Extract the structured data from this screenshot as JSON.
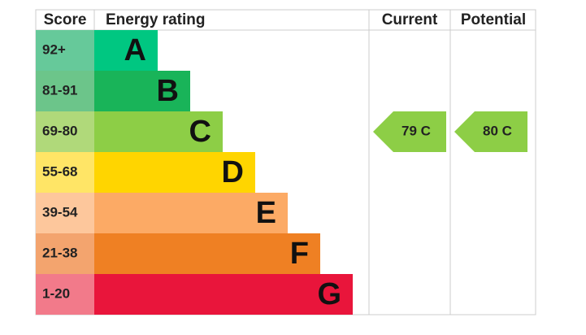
{
  "header": {
    "score": "Score",
    "rating": "Energy rating",
    "current": "Current",
    "potential": "Potential"
  },
  "bands": [
    {
      "score": "92+",
      "letter": "A",
      "score_color": "#66c99a",
      "color": "#00c781"
    },
    {
      "score": "81-91",
      "letter": "B",
      "score_color": "#6cc58a",
      "color": "#19b459"
    },
    {
      "score": "69-80",
      "letter": "C",
      "score_color": "#b0d97a",
      "color": "#8dce46"
    },
    {
      "score": "55-68",
      "letter": "D",
      "score_color": "#ffe566",
      "color": "#ffd500"
    },
    {
      "score": "39-54",
      "letter": "E",
      "score_color": "#fdc79c",
      "color": "#fcaa65"
    },
    {
      "score": "21-38",
      "letter": "F",
      "score_color": "#f3a46e",
      "color": "#ef8023"
    },
    {
      "score": "1-20",
      "letter": "G",
      "score_color": "#f27a8a",
      "color": "#e9153b"
    }
  ],
  "current": "79 C",
  "potential": "80 C"
}
